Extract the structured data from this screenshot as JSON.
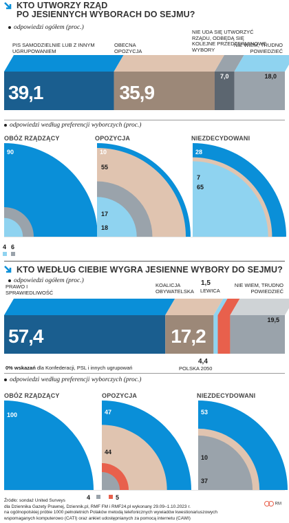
{
  "colors": {
    "blue": "#0a8fd8",
    "darkblue": "#1a5e8f",
    "beige": "#e0c4b0",
    "brown": "#9c8878",
    "grey": "#9aa3ab",
    "lightblue": "#8fd3f0",
    "red": "#e8604c",
    "darkgrey": "#5c6670",
    "bggrey": "#cfd3d6"
  },
  "section1": {
    "title_line1": "KTO UTWORZY RZĄD",
    "title_line2": "PO JESIENNYCH WYBORACH DO SEJMU?",
    "subtitle": "odpowiedzi ogółem (proc.)",
    "labels": {
      "pis": "PIS SAMODZIELNIE LUB Z INNYM UGRUPOWANIEM",
      "opp": "OBECNA OPOZYCJA",
      "none": "NIE UDA SIĘ UTWORZYĆ RZĄDU, ODBĘDĄ SIĘ KOLEJNE PRZEDTERMINOWE WYBORY",
      "dk": "NIE WIEM, TRUDNO POWIEDZIEĆ"
    },
    "value_labels": [
      "39,1",
      "35,9",
      "7,0",
      "18,0"
    ],
    "subtitle2": "odpowiedzi według preferencji wyborczych (proc.)",
    "groups": [
      "OBÓZ RZĄDZĄCY",
      "OPOZYCJA",
      "NIEZDECYDOWANI"
    ],
    "group_values": [
      [
        "90",
        "4",
        "6"
      ],
      [
        "10",
        "55",
        "17",
        "18"
      ],
      [
        "28",
        "7",
        "65"
      ]
    ]
  },
  "section2": {
    "title": "KTO WEDŁUG CIEBIE WYGRA JESIENNE WYBORY DO SEJMU?",
    "subtitle": "odpowiedzi ogółem (proc.)",
    "labels": {
      "pis": "PRAWO I SPRAWIEDLIWOŚĆ",
      "ko": "KOALICJA OBYWATELSKA",
      "lewica": "LEWICA",
      "dk": "NIE WIEM, TRUDNO POWIEDZIEĆ",
      "p2050": "POLSKA 2050"
    },
    "value_labels": [
      "57,4",
      "17,2",
      "1,5",
      "19,5",
      "4,4"
    ],
    "note_bold": "0% wskazań",
    "note_rest": "dla Konfederacji, PSL i innych ugrupowań",
    "subtitle2": "odpowiedzi według preferencji wyborczych (proc.)",
    "groups": [
      "OBÓZ RZĄDZĄCY",
      "OPOZYCJA",
      "NIEZDECYDOWANI"
    ],
    "group_values": [
      [
        "100"
      ],
      [
        "47",
        "44",
        "4",
        "5"
      ],
      [
        "53",
        "10",
        "37"
      ]
    ]
  },
  "source": {
    "line1": "Źródło: sondaż United Surveys",
    "line2": "dla Dziennika Gazety Prawnej, Dziennik.pl, RMF FM i RMF24.pl wykonany 29.09–1.10.2023 r.",
    "line3": "na ogólnopolskiej próbie 1000 pełnoletnich Polaków metodą telefonicznych wywiadów kwestionariuszowych",
    "line4": "wspomaganych komputerowo (CATI) oraz ankiet udostępnianych za pomocą internetu (CAWI)",
    "logo": "RM"
  },
  "chart_data": [
    {
      "type": "bar",
      "title": "KTO UTWORZY RZĄD PO JESIENNYCH WYBORACH DO SEJMU?",
      "subtitle": "odpowiedzi ogółem (proc.)",
      "categories": [
        "PIS SAMODZIELNIE LUB Z INNYM UGRUPOWANIEM",
        "OBECNA OPOZYCJA",
        "NIE UDA SIĘ UTWORZYĆ RZĄDU, ODBĘDĄ SIĘ KOLEJNE PRZEDTERMINOWE WYBORY",
        "NIE WIEM, TRUDNO POWIEDZIEĆ"
      ],
      "values": [
        39.1,
        35.9,
        7.0,
        18.0
      ]
    },
    {
      "type": "pie",
      "title": "OBÓZ RZĄDZĄCY",
      "values": [
        90,
        4,
        6
      ]
    },
    {
      "type": "pie",
      "title": "OPOZYCJA",
      "values": [
        10,
        55,
        17,
        18
      ]
    },
    {
      "type": "pie",
      "title": "NIEZDECYDOWANI",
      "values": [
        28,
        7,
        65
      ]
    },
    {
      "type": "bar",
      "title": "KTO WEDŁUG CIEBIE WYGRA JESIENNE WYBORY DO SEJMU?",
      "subtitle": "odpowiedzi ogółem (proc.)",
      "categories": [
        "PRAWO I SPRAWIEDLIWOŚĆ",
        "KOALICJA OBYWATELSKA",
        "LEWICA",
        "POLSKA 2050",
        "NIE WIEM, TRUDNO POWIEDZIEĆ"
      ],
      "values": [
        57.4,
        17.2,
        1.5,
        4.4,
        19.5
      ]
    },
    {
      "type": "pie",
      "title": "OBÓZ RZĄDZĄCY",
      "values": [
        100
      ]
    },
    {
      "type": "pie",
      "title": "OPOZYCJA",
      "values": [
        47,
        44,
        4,
        5
      ]
    },
    {
      "type": "pie",
      "title": "NIEZDECYDOWANI",
      "values": [
        53,
        10,
        37
      ]
    }
  ]
}
